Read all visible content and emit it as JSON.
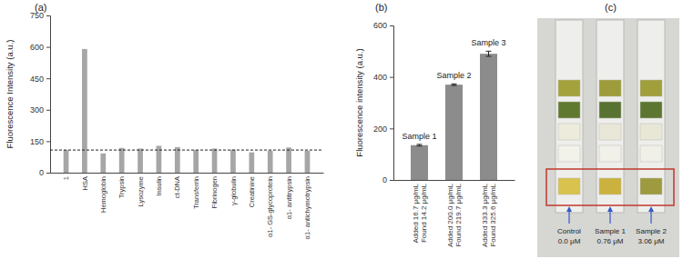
{
  "panel_labels": [
    "(a)",
    "(b)",
    "(c)"
  ],
  "chart_data": [
    {
      "type": "bar",
      "y_label": "Fluorescence Intensity (a.u.)",
      "categories": [
        "1",
        "HSA",
        "Hemoglobin",
        "Trypsin",
        "Lysozyme",
        "Insulin",
        "ct-DNA",
        "Transferrin",
        "Fibrinogen",
        "γ-globulin",
        "Creatinine",
        "α1- GS-glycoprotein",
        "α1- antitrypsin",
        "α1- antichymotrypsin"
      ],
      "values": [
        108,
        590,
        92,
        118,
        115,
        128,
        122,
        108,
        115,
        110,
        97,
        105,
        120,
        105
      ],
      "reference_line": 108,
      "color": "#a6a6a6",
      "ylim": [
        0,
        750
      ],
      "yticks": [
        0,
        150,
        300,
        450,
        600,
        750
      ]
    },
    {
      "type": "bar",
      "y_label": "Fluorescence intensity (a.u.)",
      "categories": [
        "Added 16.7 μg/mL\nFound 14.2 μg/mL",
        "Added 200.0 μg/mL\nFound 219.7 μg/mL",
        "Added 333.3 μg/mL\nFound 325.6 μg/mL"
      ],
      "values": [
        135,
        370,
        490
      ],
      "errors": [
        3,
        3,
        10
      ],
      "annotations": [
        "Sample 1",
        "Sample 2",
        "Sample 3"
      ],
      "color": "#8c8c8c",
      "ylim": [
        0,
        600
      ],
      "yticks": [
        0,
        200,
        400,
        600
      ]
    }
  ],
  "photo": {
    "strips": [
      {
        "name": "Control",
        "label": "0.0 μM"
      },
      {
        "name": "Sample 1",
        "label": "0.76 μM"
      },
      {
        "name": "Sample 2",
        "label": "3.06 μM"
      }
    ]
  }
}
